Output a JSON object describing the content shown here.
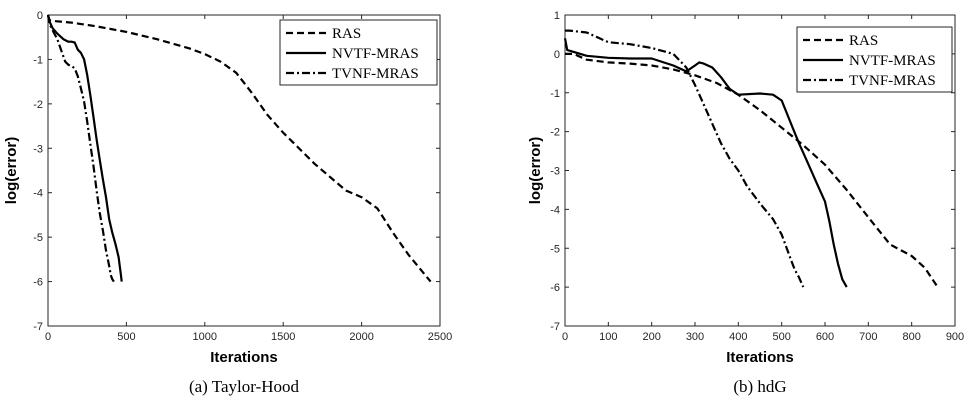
{
  "chart_data": [
    {
      "type": "line",
      "caption": "(a) Taylor-Hood",
      "xlabel": "Iterations",
      "ylabel": "log(error)",
      "xlim": [
        0,
        2500
      ],
      "ylim": [
        -7,
        0
      ],
      "xticks": [
        0,
        500,
        1000,
        1500,
        2000,
        2500
      ],
      "yticks": [
        0,
        -1,
        -2,
        -3,
        -4,
        -5,
        -6,
        -7
      ],
      "xtick_labels": [
        "0",
        "500",
        "1000",
        "1500",
        "2000",
        "2500"
      ],
      "ytick_labels": [
        "0",
        "-1",
        "-2",
        "-3",
        "-4",
        "-5",
        "-6",
        "-7"
      ],
      "legend_position": "top-right",
      "series": [
        {
          "name": "RAS",
          "dash": "dashed",
          "x": [
            0,
            10,
            50,
            150,
            300,
            500,
            700,
            900,
            1000,
            1100,
            1200,
            1300,
            1400,
            1500,
            1700,
            1900,
            2000,
            2100,
            2200,
            2300,
            2440
          ],
          "y": [
            0,
            -0.12,
            -0.14,
            -0.17,
            -0.25,
            -0.38,
            -0.55,
            -0.75,
            -0.88,
            -1.05,
            -1.3,
            -1.75,
            -2.25,
            -2.65,
            -3.35,
            -3.95,
            -4.1,
            -4.35,
            -4.9,
            -5.4,
            -6.0
          ]
        },
        {
          "name": "NVTF-MRAS",
          "dash": "solid",
          "x": [
            0,
            10,
            30,
            60,
            100,
            130,
            150,
            170,
            190,
            210,
            230,
            250,
            270,
            290,
            310,
            330,
            350,
            370,
            390,
            410,
            430,
            450,
            465,
            470
          ],
          "y": [
            0,
            -0.15,
            -0.3,
            -0.42,
            -0.55,
            -0.6,
            -0.6,
            -0.62,
            -0.78,
            -0.85,
            -1.0,
            -1.35,
            -1.8,
            -2.3,
            -2.8,
            -3.25,
            -3.7,
            -4.1,
            -4.6,
            -4.9,
            -5.15,
            -5.45,
            -5.85,
            -6.0
          ]
        },
        {
          "name": "TVNF-MRAS",
          "dash": "dashdot",
          "x": [
            0,
            10,
            30,
            60,
            90,
            110,
            130,
            150,
            170,
            190,
            210,
            230,
            250,
            270,
            290,
            310,
            330,
            350,
            370,
            390,
            400,
            410,
            420
          ],
          "y": [
            0,
            -0.2,
            -0.35,
            -0.55,
            -0.85,
            -1.05,
            -1.12,
            -1.15,
            -1.2,
            -1.38,
            -1.65,
            -1.95,
            -2.4,
            -2.9,
            -3.4,
            -3.95,
            -4.45,
            -4.85,
            -5.3,
            -5.65,
            -5.85,
            -5.95,
            -6.0
          ]
        }
      ]
    },
    {
      "type": "line",
      "caption": "(b) hdG",
      "xlabel": "Iterations",
      "ylabel": "log(error)",
      "xlim": [
        0,
        900
      ],
      "ylim": [
        -7,
        1
      ],
      "xticks": [
        0,
        100,
        200,
        300,
        400,
        500,
        600,
        700,
        800,
        900
      ],
      "yticks": [
        1,
        0,
        -1,
        -2,
        -3,
        -4,
        -5,
        -6,
        -7
      ],
      "xtick_labels": [
        "0",
        "100",
        "200",
        "300",
        "400",
        "500",
        "600",
        "700",
        "800",
        "900"
      ],
      "ytick_labels": [
        "1",
        "0",
        "-1",
        "-2",
        "-3",
        "-4",
        "-5",
        "-6",
        "-7"
      ],
      "legend_position": "top-right",
      "series": [
        {
          "name": "RAS",
          "dash": "dashed",
          "x": [
            0,
            20,
            50,
            100,
            150,
            200,
            250,
            300,
            350,
            400,
            450,
            500,
            550,
            600,
            650,
            700,
            750,
            800,
            830,
            860
          ],
          "y": [
            0.0,
            0.0,
            -0.15,
            -0.22,
            -0.25,
            -0.3,
            -0.4,
            -0.55,
            -0.75,
            -1.05,
            -1.45,
            -1.9,
            -2.35,
            -2.85,
            -3.5,
            -4.2,
            -4.9,
            -5.2,
            -5.5,
            -6.0
          ]
        },
        {
          "name": "NVTF-MRAS",
          "dash": "solid",
          "x": [
            0,
            5,
            20,
            50,
            100,
            150,
            200,
            250,
            280,
            300,
            310,
            320,
            340,
            360,
            380,
            400,
            450,
            480,
            500,
            520,
            540,
            560,
            580,
            600,
            610,
            620,
            630,
            640,
            650
          ],
          "y": [
            0.4,
            0.1,
            0.05,
            -0.05,
            -0.1,
            -0.12,
            -0.12,
            -0.3,
            -0.45,
            -0.3,
            -0.22,
            -0.25,
            -0.35,
            -0.6,
            -0.9,
            -1.05,
            -1.02,
            -1.05,
            -1.2,
            -1.75,
            -2.3,
            -2.8,
            -3.3,
            -3.8,
            -4.3,
            -4.9,
            -5.4,
            -5.8,
            -6.0
          ]
        },
        {
          "name": "TVNF-MRAS",
          "dash": "dashdot",
          "x": [
            0,
            10,
            50,
            100,
            150,
            200,
            250,
            280,
            300,
            320,
            340,
            360,
            380,
            400,
            420,
            450,
            480,
            500,
            520,
            530,
            540,
            550
          ],
          "y": [
            0.6,
            0.6,
            0.55,
            0.3,
            0.25,
            0.15,
            0.0,
            -0.35,
            -0.8,
            -1.3,
            -1.8,
            -2.3,
            -2.7,
            -3.0,
            -3.4,
            -3.85,
            -4.25,
            -4.65,
            -5.25,
            -5.55,
            -5.75,
            -6.0
          ]
        }
      ]
    }
  ]
}
